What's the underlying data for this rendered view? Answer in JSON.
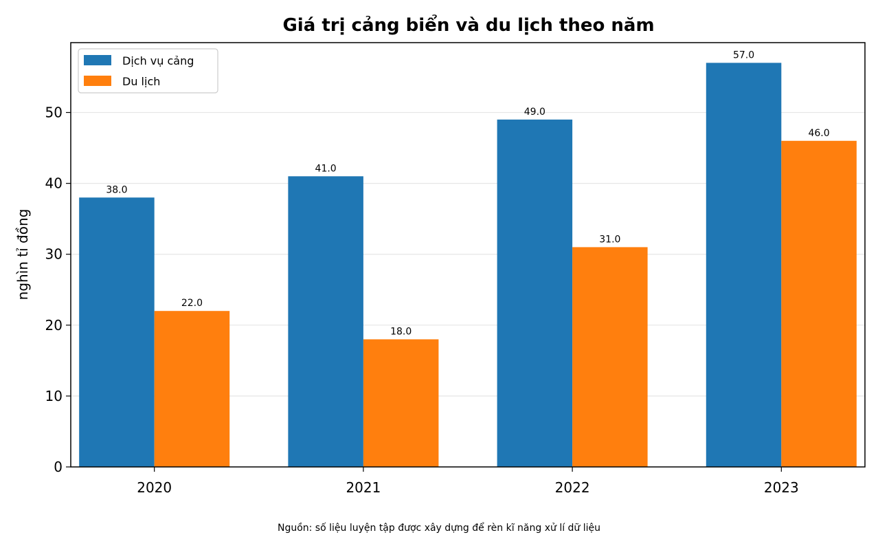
{
  "chart_data": {
    "type": "bar",
    "title": "Giá trị cảng biển và du lịch theo năm",
    "xlabel": "",
    "ylabel": "nghìn tỉ đồng",
    "categories": [
      "2020",
      "2021",
      "2022",
      "2023"
    ],
    "series": [
      {
        "name": "Dịch vụ cảng",
        "color": "#1f77b4",
        "values": [
          38.0,
          41.0,
          49.0,
          57.0
        ],
        "labels": [
          "38.0",
          "41.0",
          "49.0",
          "57.0"
        ]
      },
      {
        "name": "Du lịch",
        "color": "#ff7f0e",
        "values": [
          22.0,
          18.0,
          31.0,
          46.0
        ],
        "labels": [
          "22.0",
          "18.0",
          "31.0",
          "46.0"
        ]
      }
    ],
    "ylim": [
      0,
      59.85
    ],
    "yticks": [
      0,
      10,
      20,
      30,
      40,
      50
    ],
    "ytick_labels": [
      "0",
      "10",
      "20",
      "30",
      "40",
      "50"
    ],
    "grid": "y",
    "legend_position": "top-left",
    "footnote": "Nguồn: số liệu luyện tập được xây dựng để rèn kĩ năng xử lí dữ liệu"
  }
}
